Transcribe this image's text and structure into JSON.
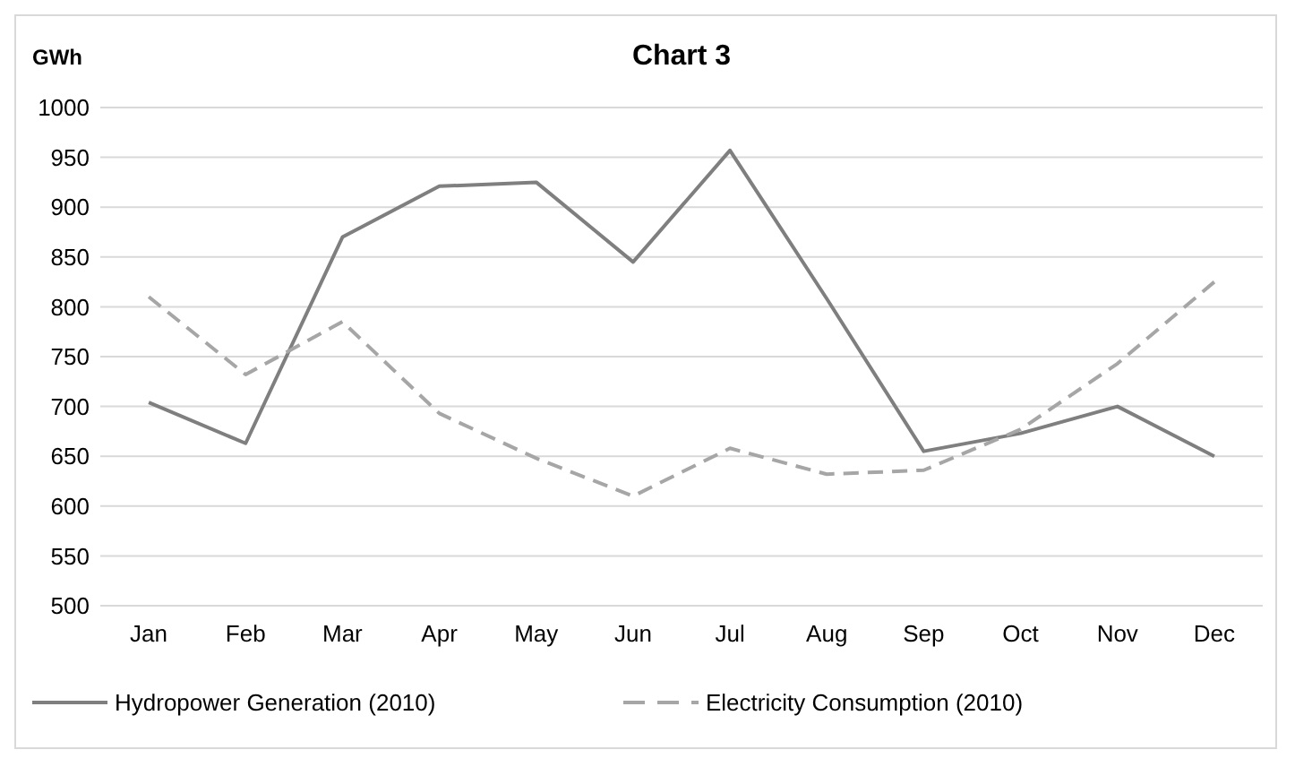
{
  "chart_data": {
    "type": "line",
    "title": "Chart 3",
    "ylabel": "GWh",
    "categories": [
      "Jan",
      "Feb",
      "Mar",
      "Apr",
      "May",
      "Jun",
      "Jul",
      "Aug",
      "Sep",
      "Oct",
      "Nov",
      "Dec"
    ],
    "series": [
      {
        "name": "Hydropower Generation (2010)",
        "color": "#7f7f7f",
        "line_style": "solid",
        "values": [
          704,
          663,
          870,
          921,
          925,
          845,
          957,
          808,
          655,
          673,
          700,
          650
        ]
      },
      {
        "name": "Electricity Consumption (2010)",
        "color": "#a6a6a6",
        "line_style": "dashed",
        "values": [
          810,
          732,
          785,
          693,
          648,
          610,
          658,
          632,
          636,
          677,
          743,
          825
        ]
      }
    ],
    "ylim": [
      500,
      1000
    ],
    "yticks": [
      500,
      550,
      600,
      650,
      700,
      750,
      800,
      850,
      900,
      950,
      1000
    ],
    "grid": "y",
    "legend": "bottom"
  }
}
